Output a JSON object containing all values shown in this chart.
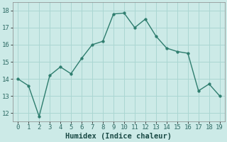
{
  "x": [
    0,
    1,
    2,
    3,
    4,
    5,
    6,
    7,
    8,
    9,
    10,
    11,
    12,
    13,
    14,
    15,
    16,
    17,
    18,
    19
  ],
  "y": [
    14.0,
    13.6,
    11.8,
    14.2,
    14.7,
    14.3,
    15.2,
    16.0,
    16.2,
    17.8,
    17.85,
    17.0,
    17.5,
    16.5,
    15.8,
    15.6,
    15.5,
    13.3,
    13.7,
    13.0
  ],
  "xlabel": "Humidex (Indice chaleur)",
  "line_color": "#2e7d6e",
  "marker": "o",
  "marker_size": 2.5,
  "line_width": 1.0,
  "background_color": "#cceae7",
  "grid_color": "#aad6d2",
  "ylim": [
    11.5,
    18.5
  ],
  "xlim": [
    -0.5,
    19.5
  ],
  "yticks": [
    12,
    13,
    14,
    15,
    16,
    17,
    18
  ],
  "xticks": [
    0,
    1,
    2,
    3,
    4,
    5,
    6,
    7,
    8,
    9,
    10,
    11,
    12,
    13,
    14,
    15,
    16,
    17,
    18,
    19
  ],
  "tick_fontsize": 6.5,
  "xlabel_fontsize": 7.5,
  "spine_color": "#888888"
}
